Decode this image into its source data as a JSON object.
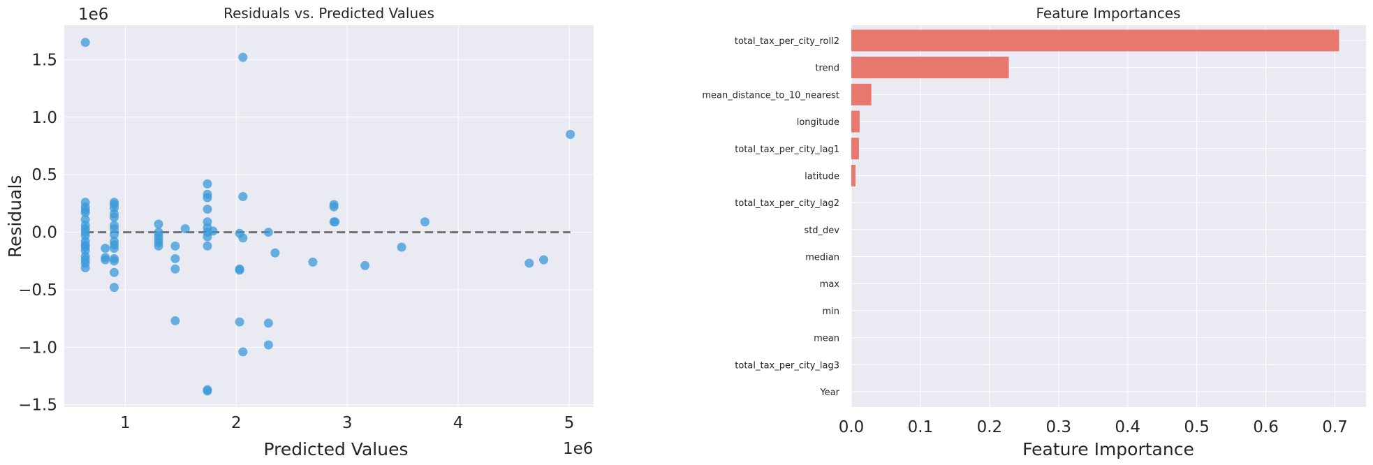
{
  "chart_data": [
    {
      "type": "scatter",
      "title": "Residuals vs. Predicted Values",
      "xlabel": "Predicted Values",
      "ylabel": "Residuals",
      "x_offset_label": "1e6",
      "y_offset_label": "1e6",
      "xlim": [
        450000,
        5220000
      ],
      "ylim": [
        -1520000,
        1800000
      ],
      "xticks": [
        1000000,
        2000000,
        3000000,
        4000000,
        5000000
      ],
      "xtick_labels": [
        "1",
        "2",
        "3",
        "4",
        "5"
      ],
      "yticks": [
        -1500000,
        -1000000,
        -500000,
        0,
        500000,
        1000000,
        1500000
      ],
      "ytick_labels": [
        "−1.5",
        "−1.0",
        "−0.5",
        "0.0",
        "0.5",
        "1.0",
        "1.5"
      ],
      "grid": true,
      "reference_line": 0,
      "point_color": "#3a9ad9",
      "line_color": "#707070",
      "background": "#eaeaf2",
      "points": [
        [
          640000,
          1650000
        ],
        [
          640000,
          260000
        ],
        [
          640000,
          220000
        ],
        [
          640000,
          190000
        ],
        [
          640000,
          170000
        ],
        [
          640000,
          110000
        ],
        [
          640000,
          60000
        ],
        [
          640000,
          30000
        ],
        [
          640000,
          0
        ],
        [
          640000,
          -30000
        ],
        [
          640000,
          -80000
        ],
        [
          640000,
          -110000
        ],
        [
          640000,
          -130000
        ],
        [
          640000,
          -160000
        ],
        [
          640000,
          -210000
        ],
        [
          640000,
          -240000
        ],
        [
          640000,
          -270000
        ],
        [
          640000,
          -310000
        ],
        [
          820000,
          -140000
        ],
        [
          820000,
          -220000
        ],
        [
          820000,
          -240000
        ],
        [
          900000,
          260000
        ],
        [
          900000,
          240000
        ],
        [
          900000,
          210000
        ],
        [
          900000,
          160000
        ],
        [
          900000,
          130000
        ],
        [
          900000,
          60000
        ],
        [
          900000,
          30000
        ],
        [
          900000,
          -20000
        ],
        [
          900000,
          -80000
        ],
        [
          900000,
          -110000
        ],
        [
          900000,
          -140000
        ],
        [
          900000,
          -230000
        ],
        [
          900000,
          -250000
        ],
        [
          900000,
          -350000
        ],
        [
          900000,
          -480000
        ],
        [
          1300000,
          70000
        ],
        [
          1300000,
          0
        ],
        [
          1300000,
          -30000
        ],
        [
          1300000,
          -60000
        ],
        [
          1300000,
          -90000
        ],
        [
          1300000,
          -120000
        ],
        [
          1450000,
          -120000
        ],
        [
          1450000,
          -230000
        ],
        [
          1450000,
          -320000
        ],
        [
          1450000,
          -770000
        ],
        [
          1540000,
          30000
        ],
        [
          1740000,
          420000
        ],
        [
          1740000,
          330000
        ],
        [
          1740000,
          300000
        ],
        [
          1740000,
          200000
        ],
        [
          1740000,
          90000
        ],
        [
          1740000,
          40000
        ],
        [
          1740000,
          0
        ],
        [
          1740000,
          -40000
        ],
        [
          1740000,
          -120000
        ],
        [
          1740000,
          -1370000
        ],
        [
          1740000,
          -1380000
        ],
        [
          1790000,
          10000
        ],
        [
          2030000,
          -10000
        ],
        [
          2030000,
          -320000
        ],
        [
          2030000,
          -330000
        ],
        [
          2030000,
          -780000
        ],
        [
          2060000,
          1520000
        ],
        [
          2060000,
          310000
        ],
        [
          2060000,
          -50000
        ],
        [
          2060000,
          -1040000
        ],
        [
          2290000,
          0
        ],
        [
          2290000,
          -790000
        ],
        [
          2290000,
          -980000
        ],
        [
          2350000,
          -180000
        ],
        [
          2690000,
          -260000
        ],
        [
          2880000,
          240000
        ],
        [
          2880000,
          220000
        ],
        [
          2880000,
          90000
        ],
        [
          2890000,
          90000
        ],
        [
          3160000,
          -290000
        ],
        [
          3490000,
          -130000
        ],
        [
          3700000,
          90000
        ],
        [
          4640000,
          -270000
        ],
        [
          4770000,
          -240000
        ],
        [
          5010000,
          850000
        ]
      ]
    },
    {
      "type": "bar",
      "orientation": "horizontal",
      "title": "Feature Importances",
      "xlabel": "Feature Importance",
      "xlim": [
        0,
        0.745
      ],
      "xticks": [
        0,
        0.1,
        0.2,
        0.3,
        0.4,
        0.5,
        0.6,
        0.7
      ],
      "xtick_labels": [
        "0.0",
        "0.1",
        "0.2",
        "0.3",
        "0.4",
        "0.5",
        "0.6",
        "0.7"
      ],
      "grid": true,
      "bar_color": "#e8786e",
      "background": "#eaeaf2",
      "categories": [
        "total_tax_per_city_roll2",
        "trend",
        "mean_distance_to_10_nearest",
        "longitude",
        "total_tax_per_city_lag1",
        "latitude",
        "total_tax_per_city_lag2",
        "std_dev",
        "median",
        "max",
        "min",
        "mean",
        "total_tax_per_city_lag3",
        "Year"
      ],
      "values": [
        0.706,
        0.228,
        0.029,
        0.012,
        0.011,
        0.006,
        0,
        0,
        0,
        0,
        0,
        0,
        0,
        0
      ]
    }
  ]
}
